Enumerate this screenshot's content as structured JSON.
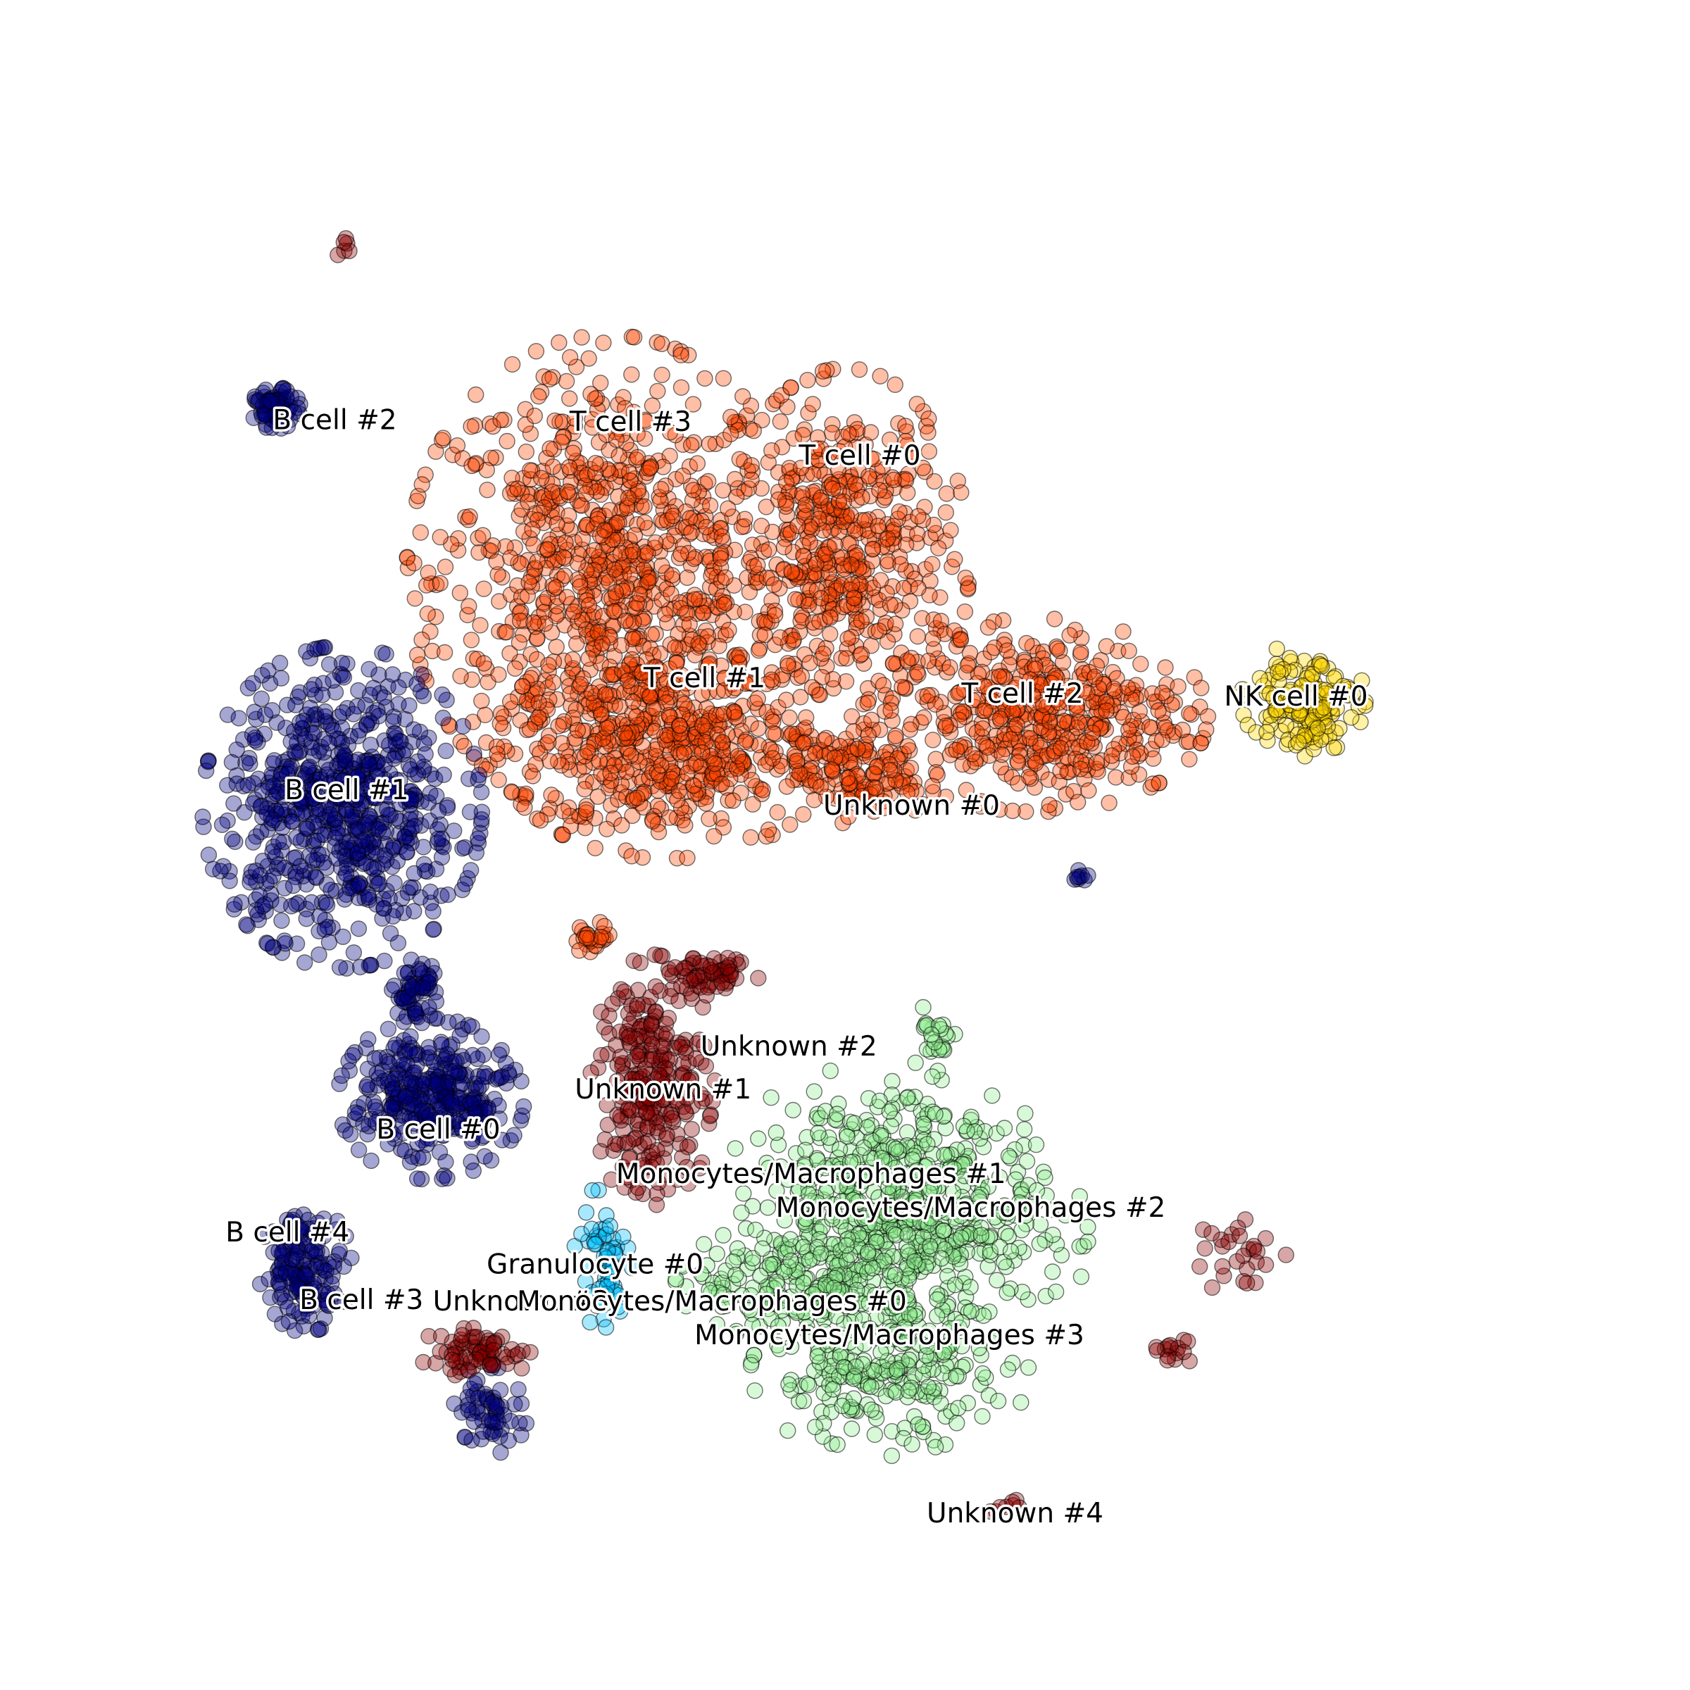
{
  "chart_data": {
    "type": "scatter",
    "title": "",
    "xlabel": "",
    "ylabel": "",
    "xlim": [
      0,
      100
    ],
    "ylim": [
      0,
      100
    ],
    "axes_visible": false,
    "grid": false,
    "legend": "none",
    "marker_alpha": 0.35,
    "series": [
      {
        "key": "t",
        "color": "#ff4500",
        "clusters": [
          {
            "label": "T cell #3",
            "x": 34,
            "y": 67,
            "rx": 13,
            "ry": 15,
            "n": 900
          },
          {
            "label": "T cell #0",
            "x": 50,
            "y": 68,
            "rx": 8,
            "ry": 12,
            "n": 500
          },
          {
            "label": "T cell #1",
            "x": 38,
            "y": 56,
            "rx": 11,
            "ry": 7,
            "n": 450
          },
          {
            "label": "T cell #2",
            "x": 63,
            "y": 58,
            "rx": 11,
            "ry": 6,
            "n": 450
          },
          {
            "label": "Unknown #0",
            "x": 51,
            "y": 54,
            "rx": 5,
            "ry": 3,
            "n": 120
          },
          {
            "label": "",
            "x": 33,
            "y": 43.5,
            "rx": 1.5,
            "ry": 1,
            "n": 25
          }
        ]
      },
      {
        "key": "b",
        "color": "#000080",
        "clusters": [
          {
            "label": "B cell #1",
            "x": 16,
            "y": 52,
            "rx": 9,
            "ry": 10,
            "n": 700
          },
          {
            "label": "B cell #0",
            "x": 22,
            "y": 33,
            "rx": 6,
            "ry": 5,
            "n": 350
          },
          {
            "label": "",
            "x": 21,
            "y": 40,
            "rx": 1.6,
            "ry": 2,
            "n": 60
          },
          {
            "label": "B cell #2",
            "x": 11.5,
            "y": 78,
            "rx": 1.6,
            "ry": 1.3,
            "n": 70
          },
          {
            "label": "B cell #4",
            "x": 13.5,
            "y": 22,
            "rx": 3,
            "ry": 4,
            "n": 160
          },
          {
            "label": "B cell #3",
            "x": 26,
            "y": 13,
            "rx": 2.5,
            "ry": 3,
            "n": 60
          },
          {
            "label": "",
            "x": 66,
            "y": 47.5,
            "rx": 0.6,
            "ry": 0.4,
            "n": 8
          }
        ]
      },
      {
        "key": "mono",
        "color": "#90ee90",
        "clusters": [
          {
            "label": "Monocytes/Macrophages #1",
            "x": 53,
            "y": 29,
            "rx": 10,
            "ry": 6,
            "n": 250
          },
          {
            "label": "Monocytes/Macrophages #2",
            "x": 55,
            "y": 24,
            "rx": 12,
            "ry": 5,
            "n": 300
          },
          {
            "label": "Monocytes/Macrophages #0",
            "x": 48,
            "y": 21,
            "rx": 9,
            "ry": 4,
            "n": 230
          },
          {
            "label": "Monocytes/Macrophages #3",
            "x": 53,
            "y": 15,
            "rx": 9,
            "ry": 5,
            "n": 230
          },
          {
            "label": "",
            "x": 56,
            "y": 37,
            "rx": 1.5,
            "ry": 2.5,
            "n": 25
          }
        ]
      },
      {
        "key": "unknown",
        "color": "#8b0000",
        "clusters": [
          {
            "label": "Unknown #1",
            "x": 37,
            "y": 34,
            "rx": 4,
            "ry": 8,
            "n": 260
          },
          {
            "label": "Unknown #2",
            "x": 41,
            "y": 41,
            "rx": 3,
            "ry": 1.2,
            "n": 60
          },
          {
            "label": "Unknown #3",
            "x": 25,
            "y": 16.5,
            "rx": 4,
            "ry": 1.5,
            "n": 70
          },
          {
            "label": "Unknown #4",
            "x": 61,
            "y": 6.5,
            "rx": 2,
            "ry": 0.6,
            "n": 8
          },
          {
            "label": "",
            "x": 77,
            "y": 23,
            "rx": 3,
            "ry": 3,
            "n": 28
          },
          {
            "label": "",
            "x": 72,
            "y": 16.5,
            "rx": 1.5,
            "ry": 1,
            "n": 15
          },
          {
            "label": "",
            "x": 16,
            "y": 88.5,
            "rx": 0.5,
            "ry": 0.6,
            "n": 6
          }
        ]
      },
      {
        "key": "nk",
        "color": "#ffd700",
        "clusters": [
          {
            "label": "NK cell #0",
            "x": 81,
            "y": 59,
            "rx": 4,
            "ry": 3.5,
            "n": 160
          }
        ]
      },
      {
        "key": "gran",
        "color": "#00bfff",
        "clusters": [
          {
            "label": "Granulocyte #0",
            "x": 33.5,
            "y": 22,
            "rx": 2,
            "ry": 5,
            "n": 60
          }
        ]
      }
    ],
    "annotations": [
      {
        "text": "T cell #3",
        "x": 35.5,
        "y": 77.0
      },
      {
        "text": "T cell #0",
        "x": 51.0,
        "y": 74.8
      },
      {
        "text": "T cell #1",
        "x": 40.5,
        "y": 60.3
      },
      {
        "text": "T cell #2",
        "x": 62.0,
        "y": 59.3
      },
      {
        "text": "Unknown #0",
        "x": 54.5,
        "y": 52.0
      },
      {
        "text": "NK cell #0",
        "x": 80.5,
        "y": 59.1
      },
      {
        "text": "B cell #2",
        "x": 15.5,
        "y": 77.1
      },
      {
        "text": "B cell #1",
        "x": 16.3,
        "y": 53.0
      },
      {
        "text": "B cell #0",
        "x": 22.5,
        "y": 30.9
      },
      {
        "text": "B cell #4",
        "x": 12.3,
        "y": 24.2
      },
      {
        "text": "B cell #3",
        "x": 17.3,
        "y": 19.8
      },
      {
        "text": "Unknown #1",
        "x": 37.7,
        "y": 33.5
      },
      {
        "text": "Unknown #2",
        "x": 46.2,
        "y": 36.3
      },
      {
        "text": "Monocytes/Macrophages #1",
        "x": 47.7,
        "y": 28.0
      },
      {
        "text": "Monocytes/Macrophages #2",
        "x": 58.5,
        "y": 25.8
      },
      {
        "text": "Granulocyte #0",
        "x": 33.1,
        "y": 22.1
      },
      {
        "text": "Unknown #3",
        "x": 28.1,
        "y": 19.7
      },
      {
        "text": "Monocytes/Macrophages #0",
        "x": 41.0,
        "y": 19.7
      },
      {
        "text": "Monocytes/Macrophages #3",
        "x": 53.0,
        "y": 17.5
      },
      {
        "text": "Unknown #4",
        "x": 61.5,
        "y": 5.9
      }
    ]
  }
}
